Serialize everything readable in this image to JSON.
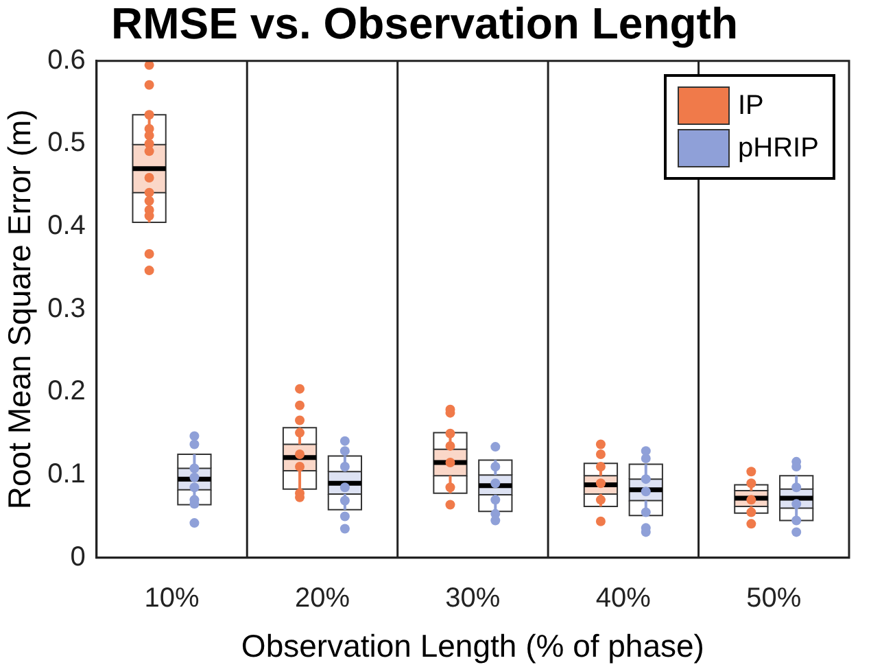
{
  "chart_data": {
    "type": "box",
    "title": "RMSE vs. Observation Length",
    "xlabel": "Observation Length (% of phase)",
    "ylabel": "Root Mean Square Error (m)",
    "categories": [
      "10%",
      "20%",
      "30%",
      "40%",
      "50%"
    ],
    "ylim": [
      0,
      0.6
    ],
    "yticks": [
      0,
      0.1,
      0.2,
      0.3,
      0.4,
      0.5,
      0.6
    ],
    "grid": "x",
    "legend": "top right",
    "marker": "circle",
    "series": [
      {
        "name": "IP",
        "color": "#f07a4a",
        "boxes": [
          {
            "low": 0.405,
            "q1": 0.441,
            "median": 0.47,
            "q3": 0.499,
            "high": 0.535
          },
          {
            "low": 0.083,
            "q1": 0.105,
            "median": 0.121,
            "q3": 0.137,
            "high": 0.157
          },
          {
            "low": 0.078,
            "q1": 0.099,
            "median": 0.115,
            "q3": 0.131,
            "high": 0.151
          },
          {
            "low": 0.062,
            "q1": 0.077,
            "median": 0.088,
            "q3": 0.099,
            "high": 0.114
          },
          {
            "low": 0.054,
            "q1": 0.062,
            "median": 0.072,
            "q3": 0.081,
            "high": 0.088
          }
        ]
      },
      {
        "name": "pHRIP",
        "color": "#8fa0d8",
        "boxes": [
          {
            "low": 0.064,
            "q1": 0.082,
            "median": 0.095,
            "q3": 0.108,
            "high": 0.125
          },
          {
            "low": 0.058,
            "q1": 0.077,
            "median": 0.09,
            "q3": 0.104,
            "high": 0.123
          },
          {
            "low": 0.056,
            "q1": 0.076,
            "median": 0.087,
            "q3": 0.1,
            "high": 0.118
          },
          {
            "low": 0.051,
            "q1": 0.069,
            "median": 0.082,
            "q3": 0.095,
            "high": 0.113
          },
          {
            "low": 0.045,
            "q1": 0.06,
            "median": 0.072,
            "q3": 0.083,
            "high": 0.099
          }
        ]
      },
      {
        "type": "scatter",
        "color": "#f07a4a",
        "x": [
          "10%",
          "10%",
          "10%",
          "10%",
          "10%",
          "10%",
          "10%",
          "10%",
          "10%",
          "10%",
          "10%",
          "10%",
          "10%",
          "10%",
          "20%",
          "20%",
          "20%",
          "20%",
          "20%",
          "20%",
          "20%",
          "20%",
          "30%",
          "30%",
          "30%",
          "30%",
          "30%",
          "30%",
          "30%",
          "40%",
          "40%",
          "40%",
          "40%",
          "40%",
          "40%",
          "50%",
          "50%",
          "50%",
          "50%",
          "50%"
        ],
        "values": [
          0.595,
          0.571,
          0.535,
          0.518,
          0.51,
          0.5,
          0.491,
          0.459,
          0.441,
          0.431,
          0.42,
          0.413,
          0.367,
          0.347,
          0.204,
          0.184,
          0.166,
          0.151,
          0.125,
          0.11,
          0.078,
          0.073,
          0.179,
          0.175,
          0.15,
          0.135,
          0.115,
          0.085,
          0.064,
          0.137,
          0.125,
          0.11,
          0.09,
          0.07,
          0.044,
          0.104,
          0.09,
          0.07,
          0.055,
          0.041
        ]
      },
      {
        "type": "scatter",
        "color": "#8fa0d8",
        "x": [
          "10%",
          "10%",
          "10%",
          "10%",
          "10%",
          "10%",
          "10%",
          "10%",
          "20%",
          "20%",
          "20%",
          "20%",
          "20%",
          "20%",
          "20%",
          "30%",
          "30%",
          "30%",
          "30%",
          "30%",
          "30%",
          "40%",
          "40%",
          "40%",
          "40%",
          "40%",
          "40%",
          "40%",
          "50%",
          "50%",
          "50%",
          "50%",
          "50%",
          "50%"
        ],
        "values": [
          0.147,
          0.137,
          0.108,
          0.097,
          0.085,
          0.07,
          0.065,
          0.042,
          0.141,
          0.129,
          0.11,
          0.085,
          0.069,
          0.05,
          0.035,
          0.134,
          0.11,
          0.09,
          0.07,
          0.053,
          0.045,
          0.129,
          0.12,
          0.095,
          0.08,
          0.055,
          0.036,
          0.031,
          0.116,
          0.11,
          0.085,
          0.065,
          0.045,
          0.031
        ]
      }
    ]
  }
}
